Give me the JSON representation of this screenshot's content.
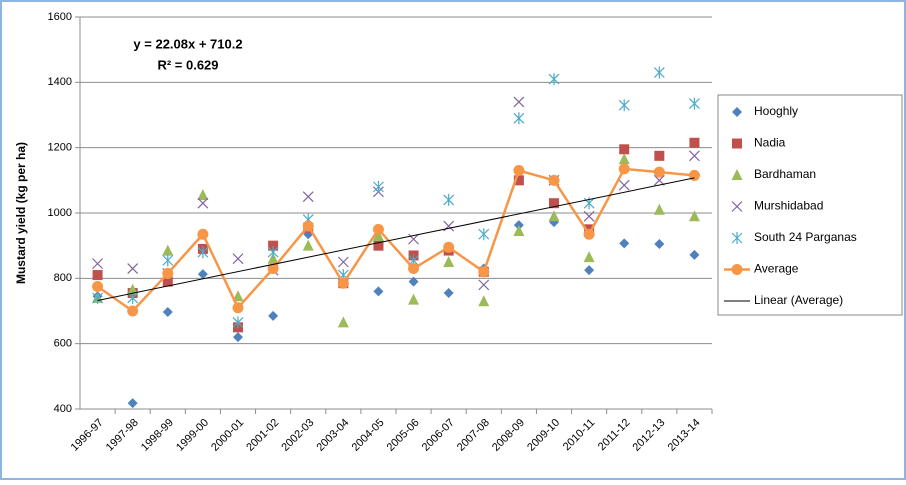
{
  "chart_data": {
    "type": "scatter-line",
    "y_label": "Mustard yield (kg per ha)",
    "categories": [
      "1996-97",
      "1997-98",
      "1998-99",
      "1999-00",
      "2000-01",
      "2001-02",
      "2002-03",
      "2003-04",
      "2004-05",
      "2005-06",
      "2006-07",
      "2007-08",
      "2008-09",
      "2009-10",
      "2010-11",
      "2011-12",
      "2012-13",
      "2013-14"
    ],
    "ylim": [
      400,
      1600
    ],
    "yticks": [
      400,
      600,
      800,
      1000,
      1200,
      1400,
      1600
    ],
    "grid": true,
    "legend": "right",
    "series": [
      {
        "name": "Hooghly",
        "color": "#4f81bd",
        "marker": "diamond",
        "values": [
          745,
          418,
          697,
          813,
          620,
          685,
          935,
          785,
          760,
          790,
          755,
          830,
          963,
          972,
          825,
          907,
          905,
          872
        ]
      },
      {
        "name": "Nadia",
        "color": "#c0504d",
        "marker": "square",
        "values": [
          810,
          755,
          790,
          890,
          650,
          900,
          955,
          785,
          900,
          870,
          885,
          820,
          1100,
          1030,
          950,
          1195,
          1175,
          1215
        ]
      },
      {
        "name": "Bardhaman",
        "color": "#9bbb59",
        "marker": "triangle",
        "values": [
          740,
          765,
          885,
          1055,
          745,
          860,
          900,
          665,
          930,
          735,
          850,
          730,
          945,
          990,
          865,
          1165,
          1010,
          990
        ]
      },
      {
        "name": "Murshidabad",
        "color": "#8064a2",
        "marker": "x",
        "values": [
          845,
          830,
          815,
          1030,
          860,
          825,
          1050,
          850,
          1065,
          920,
          960,
          780,
          1340,
          1100,
          990,
          1085,
          1100,
          1175
        ]
      },
      {
        "name": "South 24 Parganas",
        "color": "#4bacc6",
        "marker": "star",
        "values": [
          740,
          740,
          855,
          880,
          665,
          880,
          980,
          810,
          1080,
          855,
          1040,
          935,
          1290,
          1410,
          1030,
          1330,
          1430,
          1335
        ]
      },
      {
        "name": "Average",
        "color": "#f79646",
        "marker": "circle",
        "line": true,
        "values": [
          775,
          700,
          815,
          935,
          710,
          830,
          960,
          785,
          950,
          830,
          895,
          820,
          1130,
          1100,
          935,
          1135,
          1125,
          1115
        ]
      }
    ],
    "trendline": {
      "name": "Linear (Average)",
      "color": "#000000",
      "slope": 22.08,
      "intercept": 710.2,
      "equation": "y = 22.08x + 710.2",
      "r2_label": "R² = 0.629"
    }
  }
}
